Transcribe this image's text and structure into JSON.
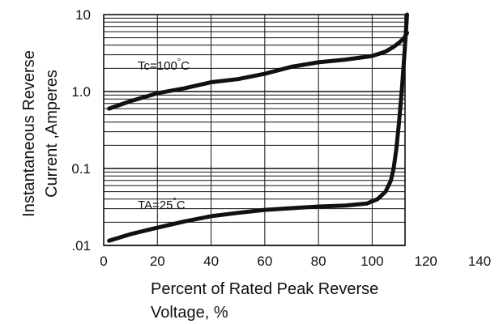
{
  "chart_data": {
    "type": "line",
    "xlabel_line1": "Percent of Rated Peak Reverse",
    "xlabel_line2": "Voltage, %",
    "ylabel_line1": "Instantaneous Reverse",
    "ylabel_line2": "Current ,Amperes",
    "xlim": [
      0,
      140
    ],
    "ylim": [
      0.01,
      10
    ],
    "yscale": "log",
    "grid": true,
    "x_ticks": [
      0,
      20,
      40,
      60,
      80,
      100,
      120,
      140
    ],
    "x_tick_labels": [
      "0",
      "20",
      "40",
      "60",
      "80",
      "100",
      "120",
      "140"
    ],
    "y_ticks": [
      0.01,
      0.1,
      1.0,
      10
    ],
    "y_tick_labels": [
      ".01",
      "0.1",
      "1.0",
      "10"
    ],
    "annotations": [
      {
        "text": "Tc=100",
        "sup": "°",
        "suffix": "C"
      },
      {
        "text": "TA=25",
        "sup": "°",
        "suffix": "C"
      }
    ],
    "series": [
      {
        "x": [
          2,
          10,
          20,
          30,
          40,
          50,
          60,
          70,
          80,
          90,
          100,
          105,
          108,
          110,
          112,
          113
        ],
        "y": [
          0.6,
          0.75,
          0.95,
          1.1,
          1.32,
          1.45,
          1.7,
          2.1,
          2.4,
          2.6,
          2.9,
          3.3,
          3.8,
          4.3,
          5.0,
          5.8
        ]
      },
      {
        "x": [
          2,
          10,
          20,
          30,
          40,
          50,
          60,
          70,
          80,
          90,
          98,
          102,
          105,
          107,
          108,
          109,
          110,
          111,
          112,
          113
        ],
        "y": [
          0.0115,
          0.014,
          0.017,
          0.0205,
          0.024,
          0.0265,
          0.029,
          0.0305,
          0.032,
          0.033,
          0.035,
          0.04,
          0.05,
          0.07,
          0.1,
          0.18,
          0.4,
          1.0,
          3.0,
          10
        ]
      }
    ]
  }
}
